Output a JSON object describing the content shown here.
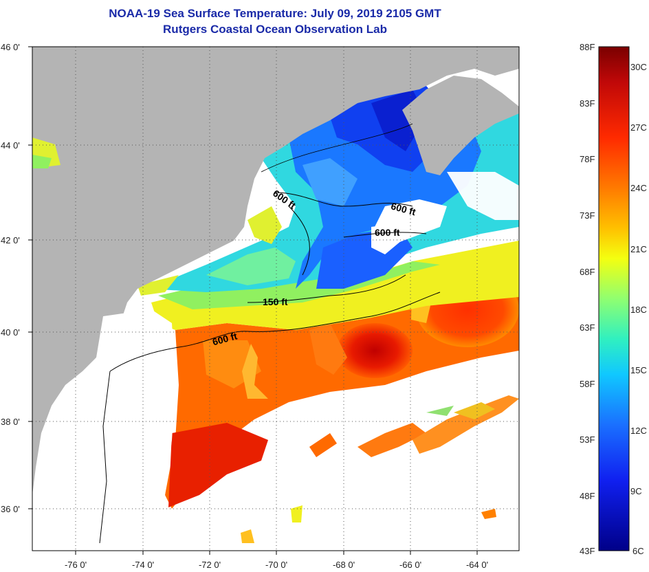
{
  "title": {
    "line1": "NOAA-19 Sea Surface Temperature:  July 09, 2019 2105 GMT",
    "line2": "Rutgers Coastal Ocean Observation Lab"
  },
  "map": {
    "lat_ticks": [
      "46 0'",
      "44 0'",
      "42 0'",
      "40 0'",
      "38 0'",
      "36 0'"
    ],
    "lon_ticks": [
      "-76 0'",
      "-74 0'",
      "-72 0'",
      "-70 0'",
      "-68 0'",
      "-66 0'",
      "-64 0'"
    ],
    "contours": [
      "600 ft",
      "600 ft",
      "600 ft",
      "150 ft",
      "600 ft"
    ],
    "colors": {
      "land": "#b4b4b4",
      "cloud": "#ffffff",
      "title": "#1a2aa8"
    }
  },
  "colorbar": {
    "fahrenheit": [
      "88F",
      "83F",
      "78F",
      "73F",
      "68F",
      "63F",
      "58F",
      "53F",
      "48F",
      "43F"
    ],
    "celsius": [
      "30C",
      "27C",
      "24C",
      "21C",
      "18C",
      "15C",
      "12C",
      "9C",
      "6C"
    ],
    "gradient": [
      "#7a0000",
      "#d01010",
      "#ff3a00",
      "#ff8a00",
      "#ffd000",
      "#f0ff20",
      "#a0ff60",
      "#40ffb0",
      "#10d8ff",
      "#1090ff",
      "#1040ff",
      "#0010d0",
      "#00007a"
    ]
  }
}
